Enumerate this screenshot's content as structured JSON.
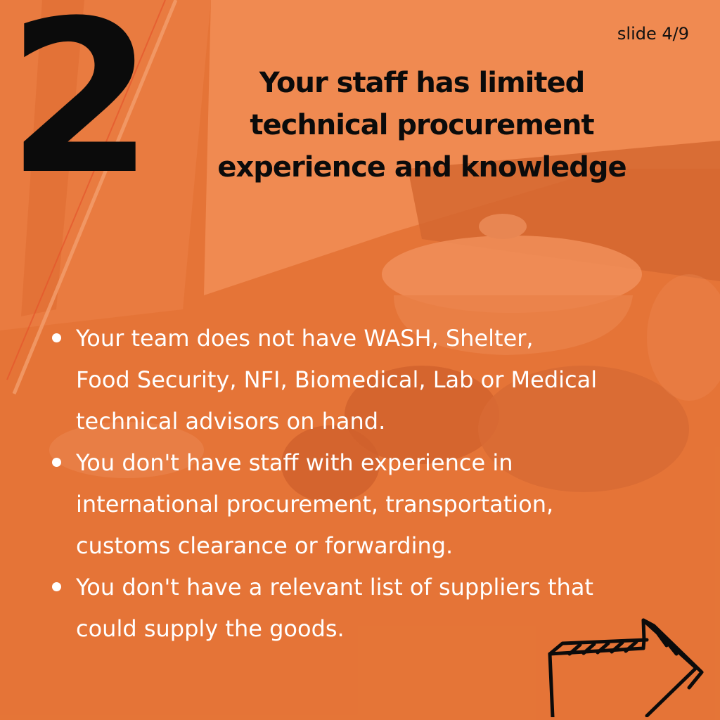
{
  "slide": {
    "counter": "slide 4/9",
    "number": "2",
    "headline_lines": [
      "Your staff has limited",
      "technical procurement",
      "experience and knowledge"
    ],
    "bullets": [
      {
        "lines": [
          "Your team does not have WASH, Shelter,",
          "Food Security, NFI, Biomedical, Lab or Medical",
          "technical advisors on hand."
        ]
      },
      {
        "lines": [
          "You don't have staff with experience in",
          "international procurement, transportation,",
          "customs clearance or forwarding."
        ]
      },
      {
        "lines": [
          "You don't have a relevant list of suppliers that",
          "could supply the goods."
        ]
      }
    ],
    "next_icon": "arrow-right-icon"
  },
  "colors": {
    "overlay_orange": "#e87a3f",
    "headline_text": "#0b0b0b",
    "bullet_text": "#ffffff"
  }
}
